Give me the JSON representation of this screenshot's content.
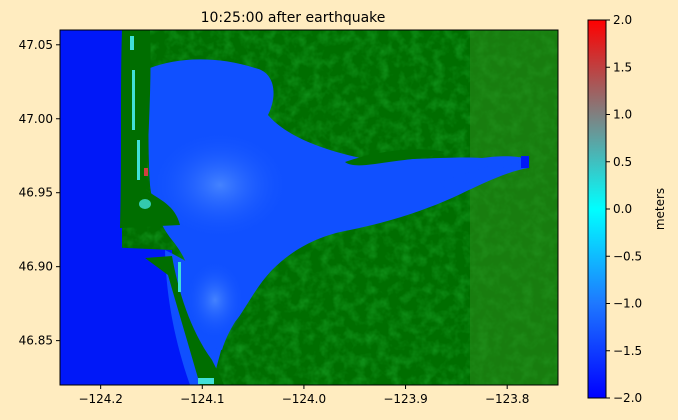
{
  "figure_background": "#ffecc0",
  "chart_data": {
    "type": "heatmap",
    "title": "10:25:00 after earthquake",
    "xlabel": "",
    "ylabel": "",
    "xlim": [
      -124.24,
      -123.75
    ],
    "ylim": [
      46.82,
      47.06
    ],
    "xticks": [
      -124.2,
      -124.1,
      -124.0,
      -123.9,
      -123.8
    ],
    "xtick_labels": [
      "−124.2",
      "−124.1",
      "−124.0",
      "−123.9",
      "−123.8"
    ],
    "yticks": [
      46.85,
      46.9,
      46.95,
      47.0,
      47.05
    ],
    "ytick_labels": [
      "46.85",
      "46.90",
      "46.95",
      "47.00",
      "47.05"
    ],
    "grid": false,
    "colors": {
      "ocean": "#0018f8",
      "bay_water": "#1050ff",
      "bay_light": "#3a78ff",
      "land": "#006e00",
      "land_light": "#2c8a1c",
      "shore_cyan": "#40e0d8",
      "shore_red": "#d04040"
    },
    "colorbar": {
      "label": "meters",
      "min": -2.0,
      "max": 2.0,
      "ticks": [
        -2.0,
        -1.5,
        -1.0,
        -0.5,
        0.0,
        0.5,
        1.0,
        1.5,
        2.0
      ],
      "tick_labels": [
        "−2.0",
        "−1.5",
        "−1.0",
        "−0.5",
        "0.0",
        "0.5",
        "1.0",
        "1.5",
        "2.0"
      ],
      "colormap": [
        {
          "v": -2.0,
          "color": "#0000ff"
        },
        {
          "v": -1.0,
          "color": "#1e78ff"
        },
        {
          "v": 0.0,
          "color": "#00ffff"
        },
        {
          "v": 1.0,
          "color": "#808080"
        },
        {
          "v": 2.0,
          "color": "#ff0000"
        }
      ]
    }
  }
}
